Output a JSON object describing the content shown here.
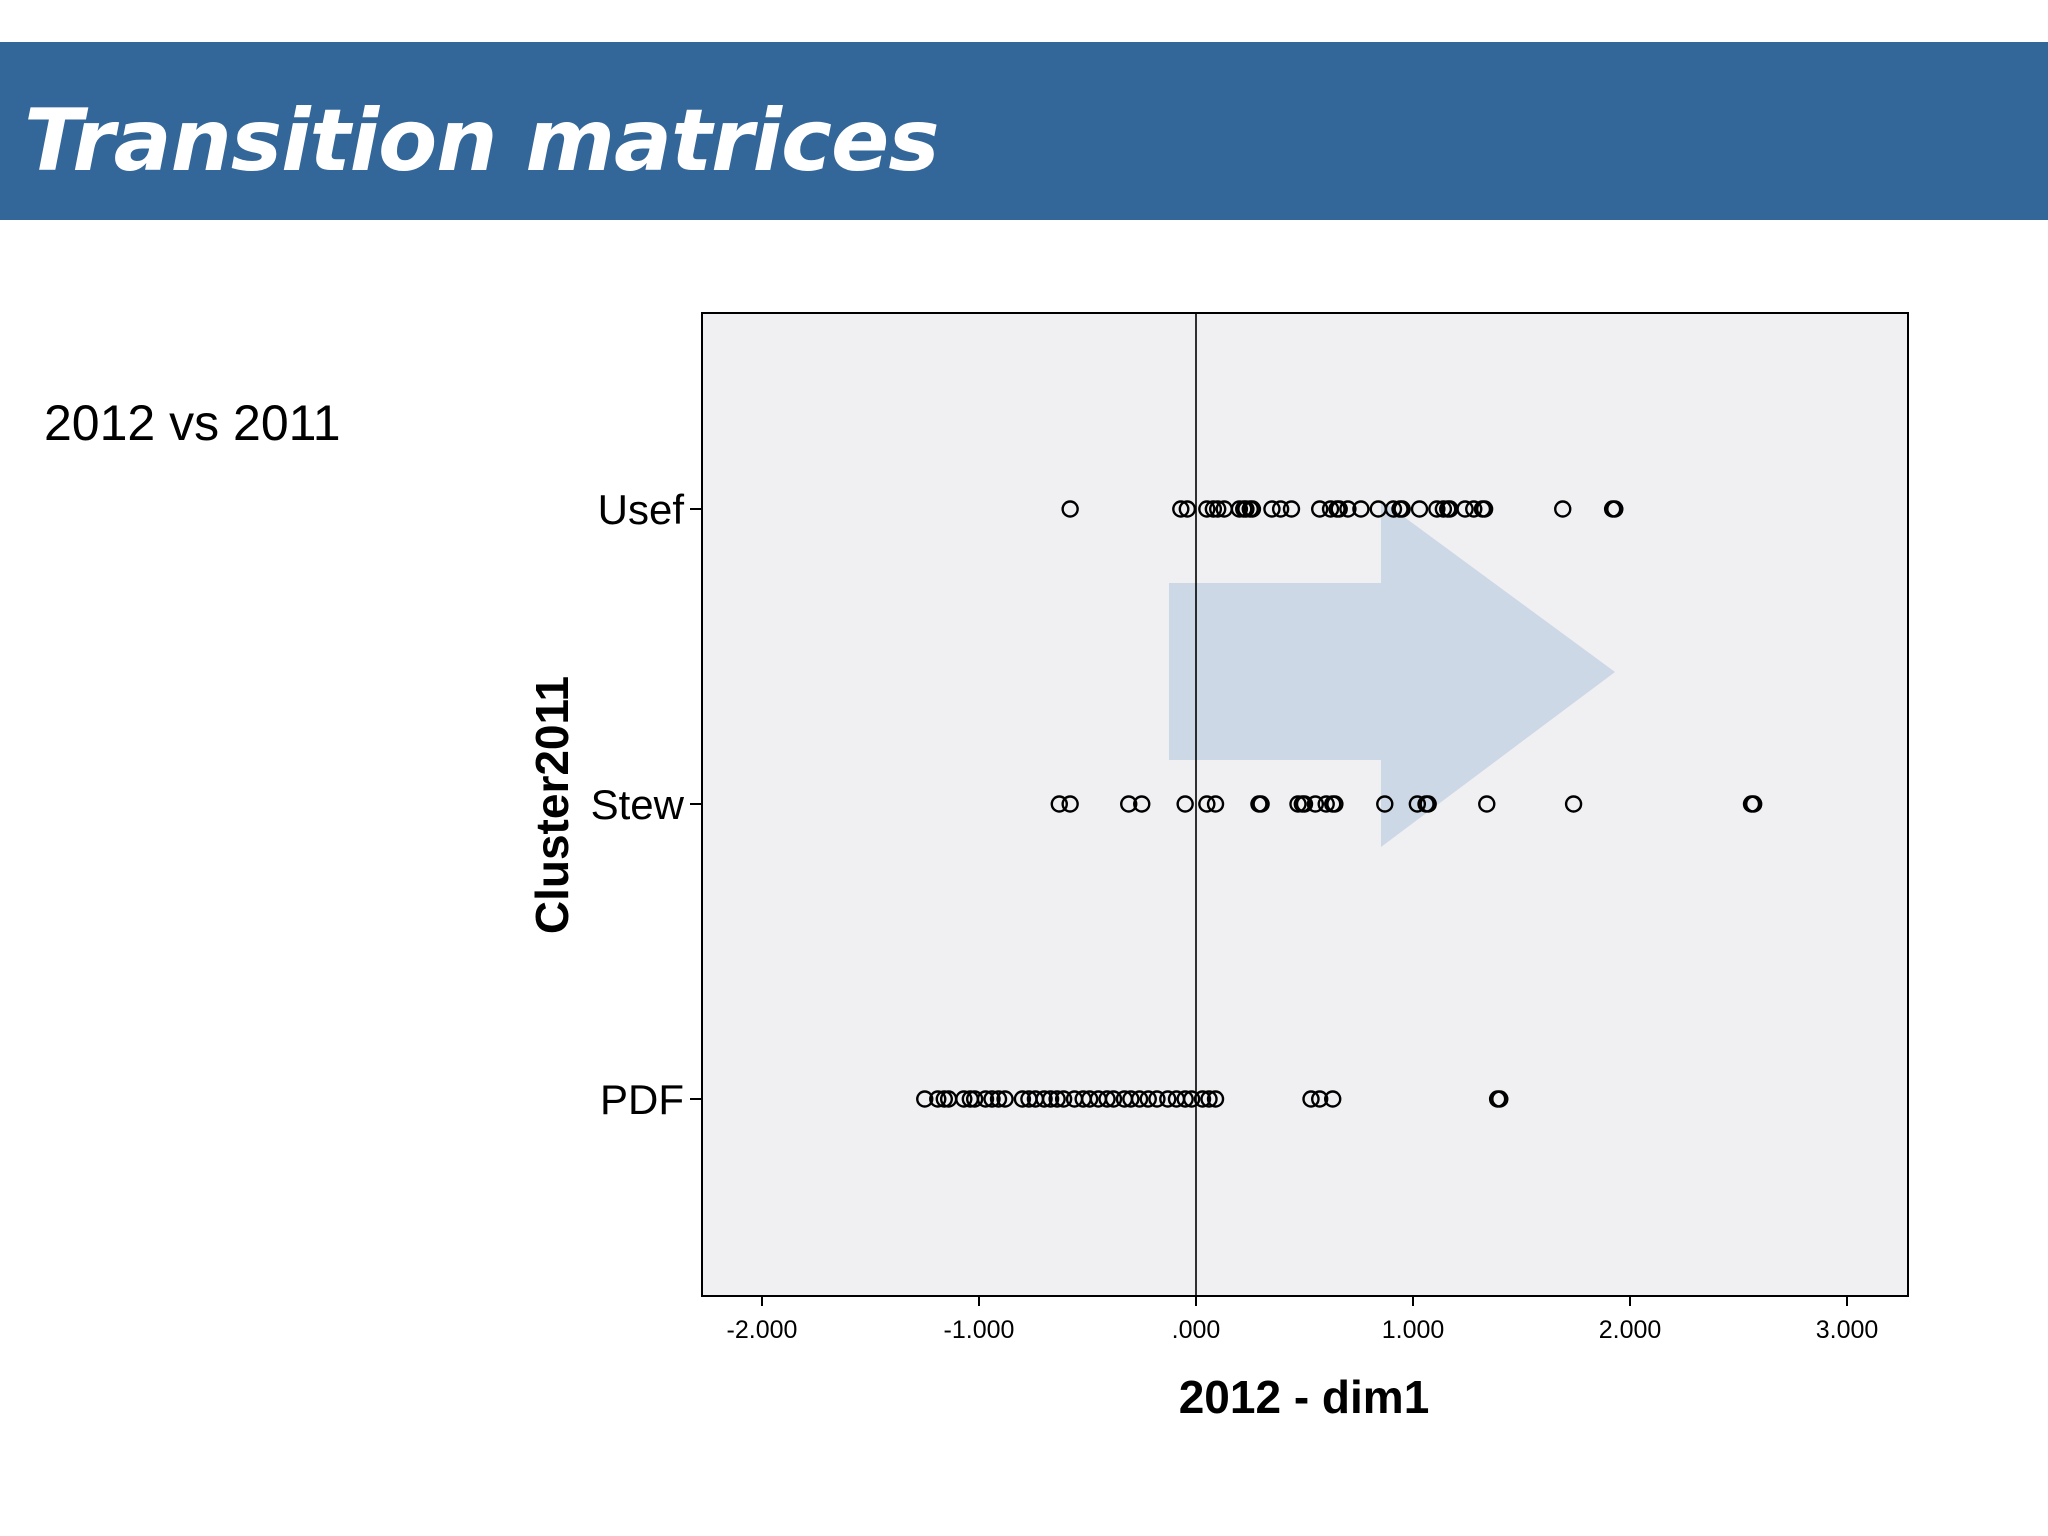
{
  "slide": {
    "title": "Transition matrices",
    "subtitle": "2012 vs 2011"
  },
  "colors": {
    "title_bar": "#336699",
    "plot_background": "#f0eff2",
    "arrow": "#c8d5e4"
  },
  "chart_data": {
    "type": "scatter",
    "xlabel": "2012 - dim1",
    "ylabel": "Cluster2011",
    "xlim": [
      -2.2,
      3.3
    ],
    "xticks": [
      -2.0,
      -1.0,
      0.0,
      1.0,
      2.0,
      3.0
    ],
    "xtick_labels": [
      "-2.000",
      "-1.000",
      ".000",
      "1.000",
      "2.000",
      "3.000"
    ],
    "categories": [
      "Usef",
      "Stew",
      "PDF"
    ],
    "reference_line_x": 0.0,
    "grid": false,
    "annotation": "arrow pointing right",
    "series": [
      {
        "category": "Usef",
        "x": [
          -0.58,
          -0.07,
          -0.04,
          0.05,
          0.08,
          0.1,
          0.13,
          0.2,
          0.22,
          0.23,
          0.25,
          0.26,
          0.35,
          0.39,
          0.44,
          0.57,
          0.62,
          0.65,
          0.66,
          0.7,
          0.76,
          0.84,
          0.91,
          0.94,
          0.95,
          1.03,
          1.11,
          1.14,
          1.16,
          1.17,
          1.24,
          1.28,
          1.32,
          1.33,
          1.69,
          1.92,
          1.93
        ]
      },
      {
        "category": "Stew",
        "x": [
          -0.63,
          -0.58,
          -0.31,
          -0.25,
          -0.05,
          0.05,
          0.09,
          0.29,
          0.3,
          0.47,
          0.49,
          0.5,
          0.55,
          0.6,
          0.63,
          0.64,
          0.87,
          1.02,
          1.06,
          1.07,
          1.34,
          1.74,
          2.56,
          2.57
        ]
      },
      {
        "category": "PDF",
        "x": [
          -1.25,
          -1.19,
          -1.16,
          -1.14,
          -1.07,
          -1.04,
          -1.02,
          -0.97,
          -0.94,
          -0.91,
          -0.88,
          -0.8,
          -0.77,
          -0.74,
          -0.7,
          -0.67,
          -0.64,
          -0.61,
          -0.56,
          -0.52,
          -0.49,
          -0.45,
          -0.41,
          -0.38,
          -0.33,
          -0.3,
          -0.26,
          -0.22,
          -0.18,
          -0.13,
          -0.09,
          -0.05,
          -0.02,
          0.03,
          0.06,
          0.09,
          0.53,
          0.57,
          0.63,
          1.39,
          1.4
        ]
      }
    ]
  }
}
